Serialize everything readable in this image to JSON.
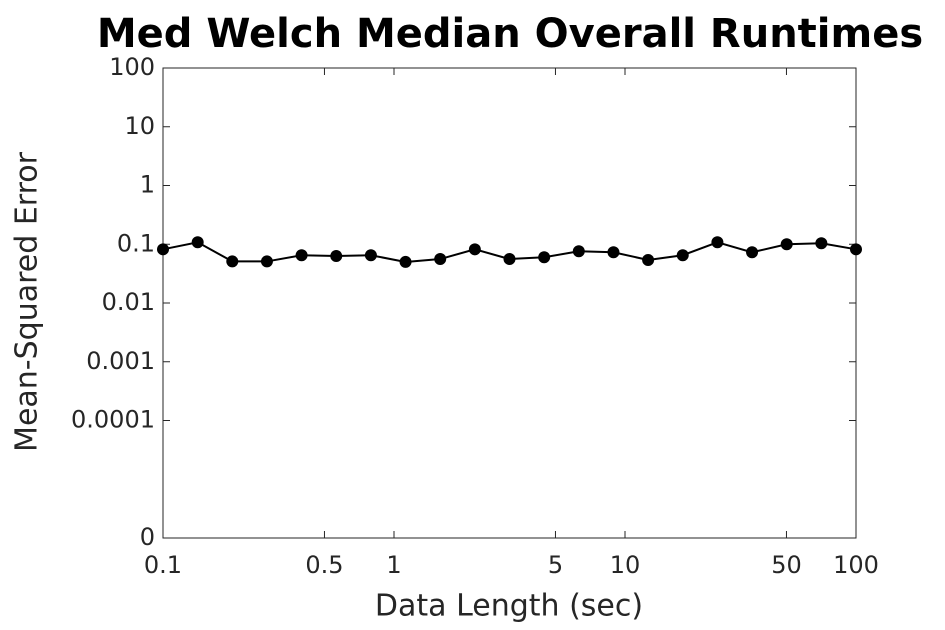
{
  "chart_data": {
    "type": "line",
    "title": "Med Welch Median Overall Runtimes",
    "x_label": "Data Length (sec)",
    "y_label": "Mean-Squared Error",
    "x": [
      0.1,
      0.1413,
      0.1995,
      0.2818,
      0.3981,
      0.5623,
      0.7943,
      1.122,
      1.585,
      2.239,
      3.162,
      4.467,
      6.31,
      8.913,
      12.59,
      17.78,
      25.12,
      35.48,
      50.12,
      70.79,
      100
    ],
    "series": [
      {
        "name": "Med Welch",
        "color": "#000000",
        "values": [
          0.082,
          0.108,
          0.051,
          0.051,
          0.065,
          0.063,
          0.065,
          0.05,
          0.056,
          0.082,
          0.056,
          0.06,
          0.076,
          0.073,
          0.054,
          0.065,
          0.108,
          0.073,
          0.1,
          0.104,
          0.082
        ]
      }
    ],
    "xscale": "log",
    "yscale": "log",
    "xlim": [
      0.1,
      100
    ],
    "xticks": [
      0.1,
      0.5,
      1,
      5,
      10,
      50,
      100
    ],
    "ylim": [
      1e-06,
      100
    ],
    "yticks": [
      {
        "value": 1e-06,
        "label": "0"
      },
      0.0001,
      0.001,
      0.01,
      0.1,
      1,
      10,
      100
    ],
    "grid": false
  }
}
